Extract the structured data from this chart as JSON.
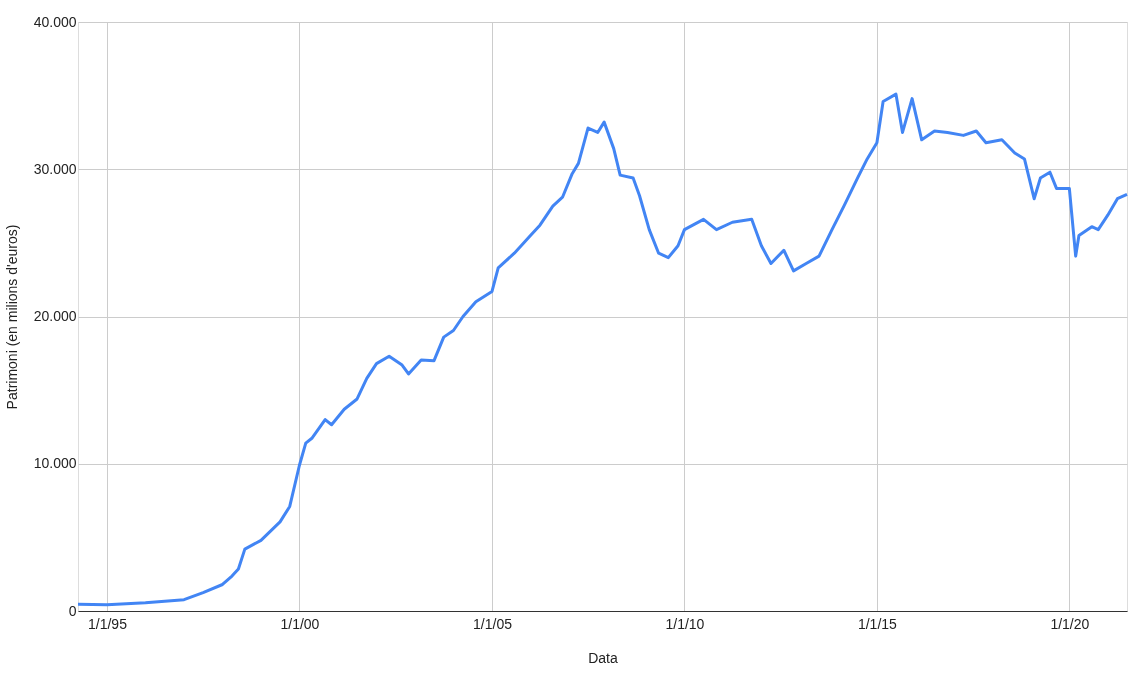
{
  "chart_data": {
    "type": "line",
    "xlabel": "Data",
    "ylabel": "Patrimoni (en milions d'euros)",
    "x": [
      "1994-04",
      "1995-01",
      "1996-01",
      "1997-01",
      "1997-07",
      "1998-01",
      "1998-04",
      "1998-06",
      "1998-08",
      "1999-01",
      "1999-07",
      "1999-10",
      "2000-01",
      "2000-03",
      "2000-05",
      "2000-09",
      "2000-11",
      "2001-03",
      "2001-07",
      "2001-10",
      "2002-01",
      "2002-05",
      "2002-09",
      "2002-11",
      "2003-03",
      "2003-07",
      "2003-10",
      "2004-01",
      "2004-04",
      "2004-08",
      "2005-01",
      "2005-03",
      "2005-08",
      "2006-01",
      "2006-04",
      "2006-08",
      "2006-11",
      "2007-02",
      "2007-04",
      "2007-07",
      "2007-10",
      "2007-12",
      "2008-03",
      "2008-05",
      "2008-09",
      "2008-11",
      "2009-02",
      "2009-05",
      "2009-08",
      "2009-11",
      "2010-01",
      "2010-07",
      "2010-11",
      "2011-04",
      "2011-10",
      "2012-01",
      "2012-04",
      "2012-08",
      "2012-11",
      "2013-03",
      "2013-07",
      "2013-11",
      "2014-03",
      "2014-07",
      "2014-10",
      "2015-01",
      "2015-03",
      "2015-07",
      "2015-09",
      "2015-12",
      "2016-03",
      "2016-07",
      "2016-11",
      "2017-04",
      "2017-08",
      "2017-11",
      "2018-04",
      "2018-08",
      "2018-11",
      "2019-02",
      "2019-04",
      "2019-07",
      "2019-09",
      "2019-11",
      "2020-01",
      "2020-03",
      "2020-04",
      "2020-08",
      "2020-10",
      "2021-01",
      "2021-04",
      "2021-07"
    ],
    "series": [
      {
        "color": "#4285f4",
        "values": [
          450,
          420,
          560,
          770,
          1250,
          1800,
          2370,
          2850,
          4200,
          4800,
          6050,
          7100,
          9900,
          11400,
          11750,
          13000,
          12650,
          13700,
          14400,
          15800,
          16800,
          17300,
          16700,
          16100,
          17050,
          17000,
          18600,
          19050,
          20000,
          21000,
          21700,
          23300,
          24300,
          25500,
          26200,
          27500,
          28100,
          29700,
          30400,
          32800,
          32500,
          33200,
          31400,
          29600,
          29400,
          28200,
          25900,
          24300,
          24000,
          24800,
          25900,
          26600,
          25900,
          26400,
          26600,
          24800,
          23600,
          24500,
          23100,
          23600,
          24100,
          25900,
          27600,
          29400,
          30700,
          31800,
          34600,
          35100,
          32500,
          34800,
          32000,
          32600,
          32500,
          32300,
          32600,
          31800,
          32000,
          31100,
          30700,
          28000,
          29400,
          29800,
          28700,
          28700,
          28700,
          24100,
          25500,
          26100,
          25900,
          26900,
          28000,
          28300
        ]
      }
    ],
    "xlim": [
      "1994-04",
      "2021-07"
    ],
    "xticks": [
      {
        "value": "1995-01-01",
        "label": "1/1/95"
      },
      {
        "value": "2000-01-01",
        "label": "1/1/00"
      },
      {
        "value": "2005-01-01",
        "label": "1/1/05"
      },
      {
        "value": "2010-01-01",
        "label": "1/1/10"
      },
      {
        "value": "2015-01-01",
        "label": "1/1/15"
      },
      {
        "value": "2020-01-01",
        "label": "1/1/20"
      }
    ],
    "ylim": [
      0,
      40000
    ],
    "yticks": [
      0,
      {
        "value": 10000,
        "label": "10.000"
      },
      {
        "value": 20000,
        "label": "20.000"
      },
      {
        "value": 30000,
        "label": "30.000"
      },
      {
        "value": 40000,
        "label": "40.000"
      }
    ],
    "grid": true,
    "marker": "none",
    "line_style": "solid"
  }
}
